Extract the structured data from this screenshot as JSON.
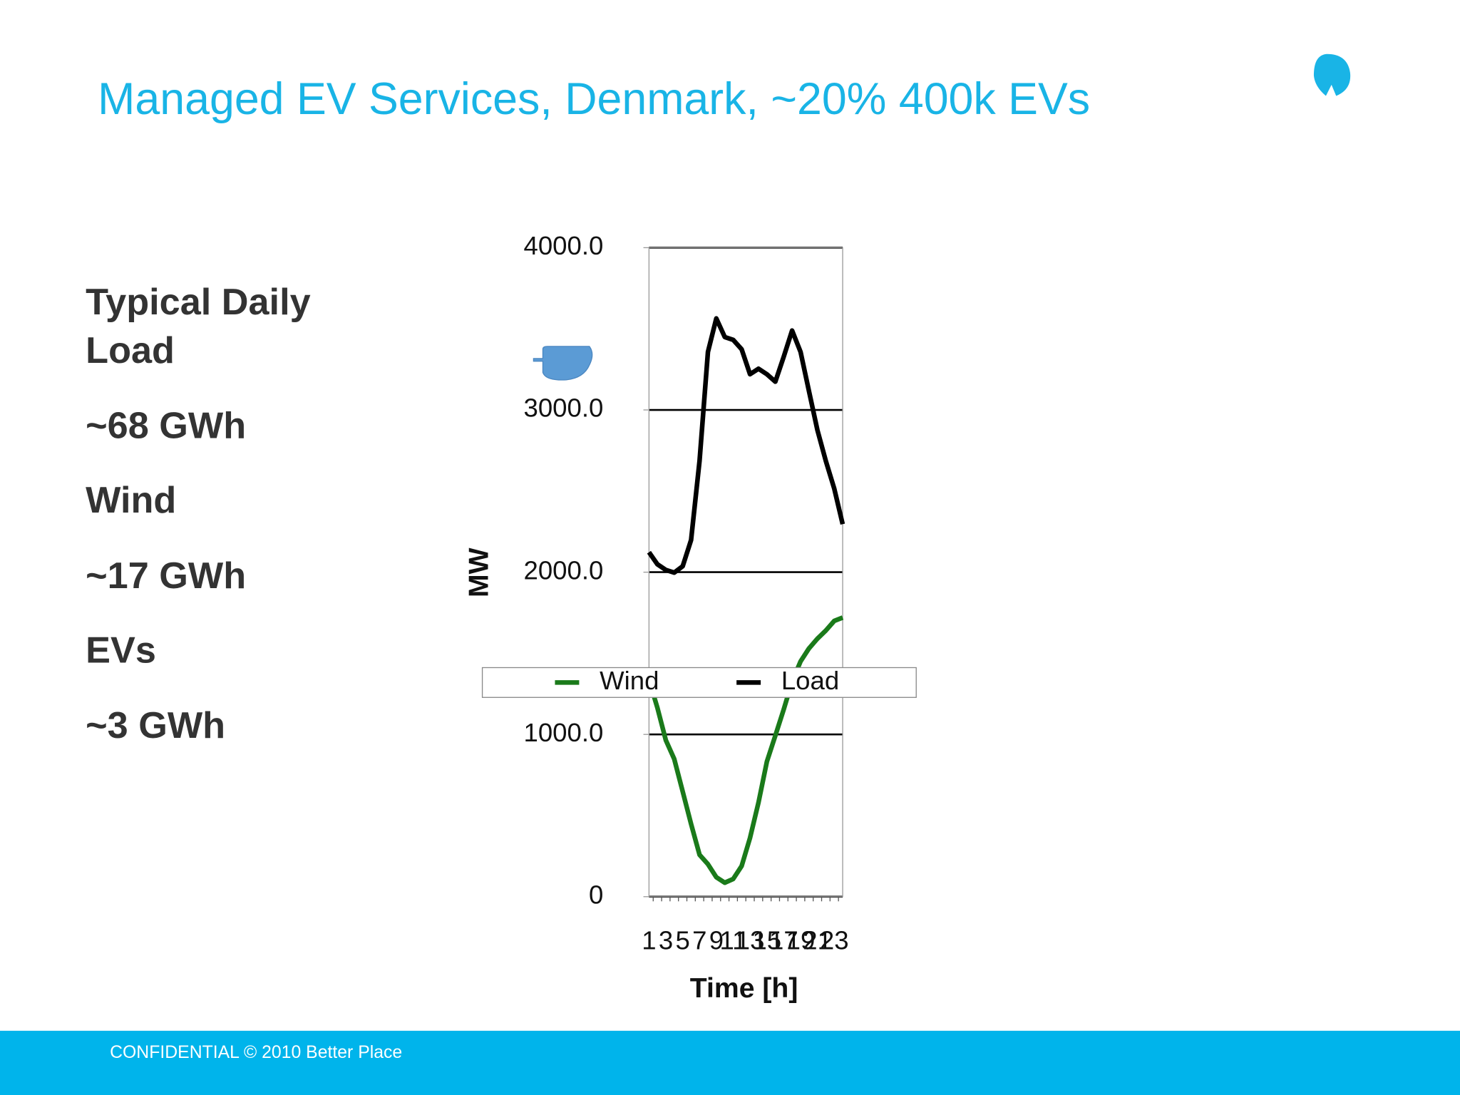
{
  "title": "Managed EV Services, Denmark, ~20% 400k EVs",
  "points": [
    "Typical Daily Load",
    "~68 GWh",
    "Wind",
    "~17 GWh",
    "EVs",
    "~3 GWh"
  ],
  "footer": "CONFIDENTIAL © 2010 Better Place",
  "chart_data": {
    "type": "line",
    "xlabel": "Time [h]",
    "ylabel": "MW",
    "categories": [
      "1",
      null,
      "3",
      null,
      "5",
      null,
      "7",
      null,
      "9",
      null,
      "11",
      null,
      "13",
      null,
      "15",
      null,
      "17",
      null,
      "19",
      null,
      "21",
      null,
      "23",
      null
    ],
    "series": [
      {
        "name": "Wind",
        "color": "#1a7a1a",
        "values": [
          1337,
          1165,
          964,
          849,
          648,
          448,
          258,
          200,
          120,
          86,
          109,
          189,
          362,
          580,
          832,
          993,
          1154,
          1326,
          1450,
          1530,
          1590,
          1640,
          1700,
          1720
        ]
      },
      {
        "name": "Load",
        "color": "#000000",
        "values": [
          2123,
          2049,
          2014,
          1997,
          2037,
          2198,
          2686,
          3357,
          3564,
          3449,
          3432,
          3374,
          3220,
          3254,
          3220,
          3174,
          3328,
          3489,
          3357,
          3116,
          2875,
          2686,
          2514,
          2296
        ]
      }
    ],
    "ylim": [
      0,
      4000
    ],
    "yticks": [
      0,
      {
        "value": 1000,
        "label": "1000.0"
      },
      {
        "value": 2000,
        "label": "2000.0"
      },
      {
        "value": 3000,
        "label": "3000.0"
      },
      {
        "value": 4000,
        "label": "4000.0"
      }
    ],
    "grid": true
  }
}
